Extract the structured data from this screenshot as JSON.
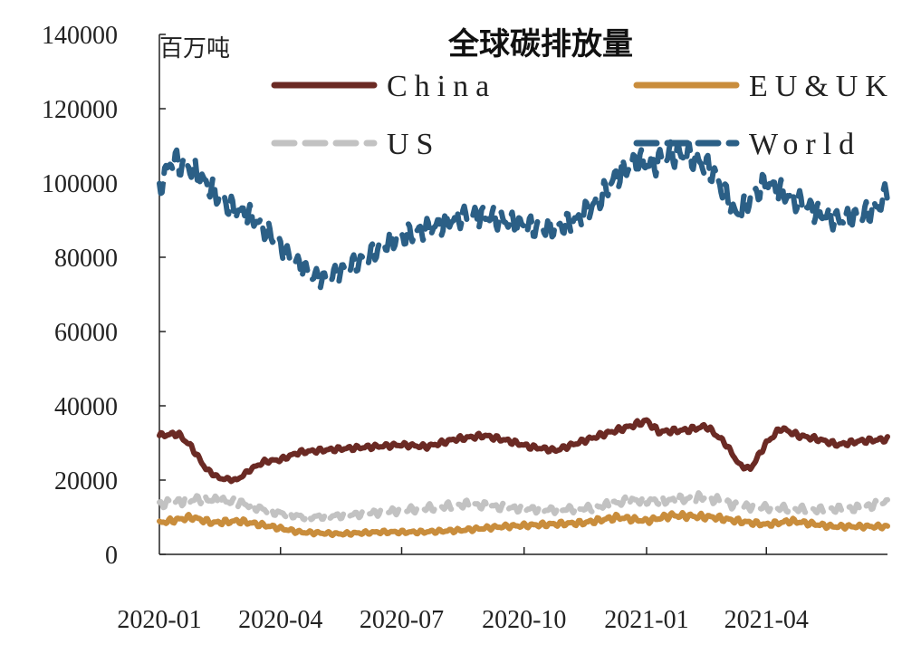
{
  "chart_data": {
    "type": "line",
    "title": "全球碳排放量",
    "ylabel": "百万吨",
    "xlabel": "",
    "ylim": [
      0,
      140000
    ],
    "yticks": [
      "0",
      "20000",
      "40000",
      "60000",
      "80000",
      "100000",
      "120000",
      "140000"
    ],
    "xticks": [
      "2020-01",
      "2020-04",
      "2020-07",
      "2020-10",
      "2021-01",
      "2021-04"
    ],
    "x_range": [
      "2020-01-01",
      "2021-07-01"
    ],
    "grid": false,
    "legend_position": "top",
    "series": [
      {
        "name": "China",
        "color": "#6b2a24",
        "dash": "solid",
        "points": [
          [
            "2020-01-01",
            32000
          ],
          [
            "2020-01-15",
            32500
          ],
          [
            "2020-01-25",
            29000
          ],
          [
            "2020-02-05",
            23000
          ],
          [
            "2020-02-15",
            20500
          ],
          [
            "2020-02-28",
            20000
          ],
          [
            "2020-03-10",
            23000
          ],
          [
            "2020-03-20",
            25000
          ],
          [
            "2020-04-01",
            25500
          ],
          [
            "2020-04-15",
            27500
          ],
          [
            "2020-05-01",
            28000
          ],
          [
            "2020-05-20",
            28500
          ],
          [
            "2020-06-10",
            29000
          ],
          [
            "2020-07-01",
            29500
          ],
          [
            "2020-07-20",
            29000
          ],
          [
            "2020-08-10",
            31000
          ],
          [
            "2020-09-01",
            32000
          ],
          [
            "2020-09-20",
            30500
          ],
          [
            "2020-10-05",
            29000
          ],
          [
            "2020-10-25",
            28000
          ],
          [
            "2020-11-10",
            30000
          ],
          [
            "2020-12-01",
            32500
          ],
          [
            "2020-12-20",
            34500
          ],
          [
            "2021-01-01",
            36000
          ],
          [
            "2021-01-10",
            33000
          ],
          [
            "2021-02-01",
            33500
          ],
          [
            "2021-02-15",
            34500
          ],
          [
            "2021-03-01",
            30000
          ],
          [
            "2021-03-12",
            24000
          ],
          [
            "2021-03-20",
            23000
          ],
          [
            "2021-04-01",
            30000
          ],
          [
            "2021-04-12",
            34000
          ],
          [
            "2021-04-25",
            32000
          ],
          [
            "2021-05-10",
            31000
          ],
          [
            "2021-05-25",
            29500
          ],
          [
            "2021-06-10",
            30500
          ],
          [
            "2021-07-01",
            31000
          ]
        ]
      },
      {
        "name": "EU&UK",
        "color": "#c98d3c",
        "dash": "solid",
        "points": [
          [
            "2020-01-01",
            8500
          ],
          [
            "2020-01-25",
            10000
          ],
          [
            "2020-02-10",
            8500
          ],
          [
            "2020-03-01",
            9000
          ],
          [
            "2020-03-25",
            7500
          ],
          [
            "2020-04-15",
            6000
          ],
          [
            "2020-05-15",
            5500
          ],
          [
            "2020-06-15",
            6000
          ],
          [
            "2020-07-15",
            6000
          ],
          [
            "2020-08-15",
            6500
          ],
          [
            "2020-09-15",
            7500
          ],
          [
            "2020-10-15",
            8000
          ],
          [
            "2020-11-15",
            8500
          ],
          [
            "2020-12-10",
            10000
          ],
          [
            "2021-01-01",
            9000
          ],
          [
            "2021-01-20",
            10500
          ],
          [
            "2021-02-20",
            10000
          ],
          [
            "2021-03-10",
            9000
          ],
          [
            "2021-04-01",
            8000
          ],
          [
            "2021-04-20",
            9000
          ],
          [
            "2021-05-20",
            7500
          ],
          [
            "2021-07-01",
            7500
          ]
        ]
      },
      {
        "name": "US",
        "color": "#c2c2c2",
        "dash": "dashed",
        "points": [
          [
            "2020-01-01",
            13500
          ],
          [
            "2020-02-01",
            15000
          ],
          [
            "2020-03-01",
            14000
          ],
          [
            "2020-03-25",
            11500
          ],
          [
            "2020-04-20",
            10000
          ],
          [
            "2020-05-20",
            10500
          ],
          [
            "2020-06-20",
            11500
          ],
          [
            "2020-07-20",
            12500
          ],
          [
            "2020-08-20",
            13500
          ],
          [
            "2020-09-20",
            12500
          ],
          [
            "2020-10-20",
            12000
          ],
          [
            "2020-11-20",
            12500
          ],
          [
            "2020-12-20",
            14500
          ],
          [
            "2021-01-20",
            14500
          ],
          [
            "2021-02-15",
            15500
          ],
          [
            "2021-03-10",
            13000
          ],
          [
            "2021-04-10",
            12500
          ],
          [
            "2021-05-10",
            12000
          ],
          [
            "2021-06-10",
            12500
          ],
          [
            "2021-07-01",
            14000
          ]
        ]
      },
      {
        "name": "World",
        "color": "#2b5f86",
        "dash": "dashed",
        "points": [
          [
            "2020-01-01",
            99000
          ],
          [
            "2020-01-10",
            106000
          ],
          [
            "2020-01-25",
            104000
          ],
          [
            "2020-02-10",
            98000
          ],
          [
            "2020-02-25",
            93000
          ],
          [
            "2020-03-10",
            91000
          ],
          [
            "2020-03-25",
            86000
          ],
          [
            "2020-04-05",
            81000
          ],
          [
            "2020-04-15",
            78000
          ],
          [
            "2020-04-25",
            75000
          ],
          [
            "2020-05-05",
            74000
          ],
          [
            "2020-05-20",
            77000
          ],
          [
            "2020-06-05",
            80000
          ],
          [
            "2020-06-20",
            84000
          ],
          [
            "2020-07-05",
            86000
          ],
          [
            "2020-07-25",
            88000
          ],
          [
            "2020-08-15",
            91000
          ],
          [
            "2020-09-05",
            91000
          ],
          [
            "2020-09-25",
            89000
          ],
          [
            "2020-10-10",
            88000
          ],
          [
            "2020-10-25",
            88000
          ],
          [
            "2020-11-10",
            90000
          ],
          [
            "2020-11-25",
            95000
          ],
          [
            "2020-12-10",
            102000
          ],
          [
            "2020-12-25",
            106000
          ],
          [
            "2021-01-05",
            105000
          ],
          [
            "2021-01-20",
            108000
          ],
          [
            "2021-02-05",
            107000
          ],
          [
            "2021-02-20",
            103000
          ],
          [
            "2021-03-01",
            97000
          ],
          [
            "2021-03-10",
            91000
          ],
          [
            "2021-03-20",
            96000
          ],
          [
            "2021-04-01",
            100000
          ],
          [
            "2021-04-10",
            98000
          ],
          [
            "2021-04-25",
            95000
          ],
          [
            "2021-05-10",
            92000
          ],
          [
            "2021-05-25",
            90000
          ],
          [
            "2021-06-10",
            91000
          ],
          [
            "2021-06-25",
            94000
          ],
          [
            "2021-07-01",
            98000
          ]
        ]
      }
    ]
  }
}
